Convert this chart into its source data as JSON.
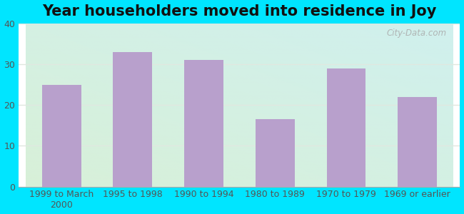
{
  "title": "Year householders moved into residence in Joy",
  "categories": [
    "1999 to March\n2000",
    "1995 to 1998",
    "1990 to 1994",
    "1980 to 1989",
    "1970 to 1979",
    "1969 or earlier"
  ],
  "values": [
    25,
    33,
    31,
    16.5,
    29,
    22
  ],
  "bar_color": "#b8a0cc",
  "ylim": [
    0,
    40
  ],
  "yticks": [
    0,
    10,
    20,
    30,
    40
  ],
  "background_outer": "#00e5ff",
  "bg_top_right": "#d0f0ee",
  "bg_bottom_left": "#d8f0d8",
  "grid_color": "#e0e8e0",
  "title_fontsize": 15,
  "tick_fontsize": 9,
  "watermark": "City-Data.com"
}
